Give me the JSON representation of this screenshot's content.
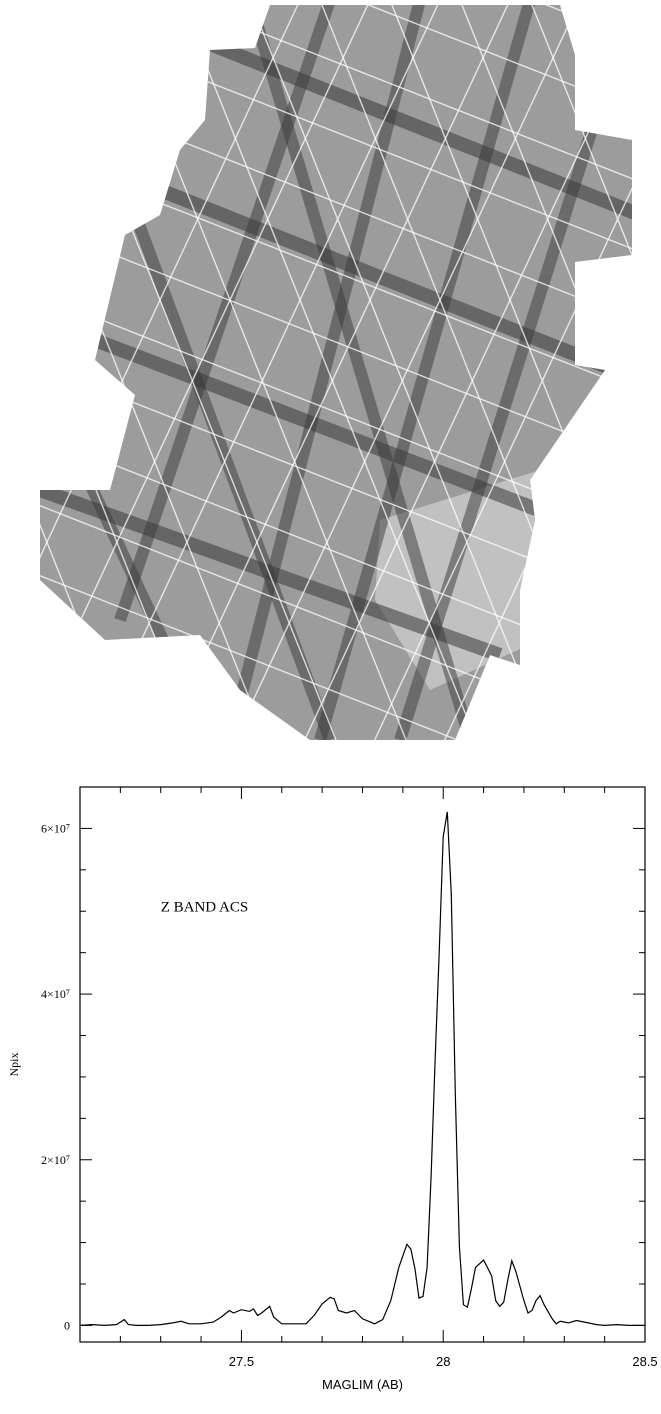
{
  "figure": {
    "top_panel": "ACS z-band mosaic exposure map",
    "colors": {
      "mosaic_fill": "#9c9c9c",
      "mosaic_light": "#b8b8b8",
      "strip_dark": "#3a3a3a",
      "white_lines": "#ffffff",
      "curve": "#000000"
    }
  },
  "chart_data": {
    "type": "line",
    "title": "",
    "annotation": "Z BAND ACS",
    "xlabel": "MAGLIM (AB)",
    "ylabel": "Npix",
    "xlim": [
      27.1,
      28.5
    ],
    "ylim": [
      -2000000,
      65000000
    ],
    "xticks": [
      27.5,
      28,
      28.5
    ],
    "xtick_labels": [
      "27.5",
      "28",
      "28.5"
    ],
    "yticks": [
      0,
      20000000,
      40000000,
      60000000
    ],
    "ytick_labels": [
      "0",
      "2×10⁷",
      "4×10⁷",
      "6×10⁷"
    ],
    "grid": false,
    "series": [
      {
        "x": [
          27.1,
          27.13,
          27.16,
          27.19,
          27.21,
          27.22,
          27.24,
          27.27,
          27.3,
          27.33,
          27.35,
          27.37,
          27.4,
          27.43,
          27.45,
          27.47,
          27.48,
          27.5,
          27.52,
          27.53,
          27.54,
          27.55,
          27.57,
          27.58,
          27.6,
          27.63,
          27.66,
          27.68,
          27.7,
          27.72,
          27.73,
          27.74,
          27.76,
          27.78,
          27.8,
          27.83,
          27.85,
          27.87,
          27.89,
          27.91,
          27.92,
          27.93,
          27.94,
          27.95,
          27.96,
          27.97,
          27.98,
          27.99,
          28.0,
          28.01,
          28.02,
          28.03,
          28.04,
          28.05,
          28.06,
          28.07,
          28.08,
          28.1,
          28.12,
          28.13,
          28.14,
          28.15,
          28.16,
          28.17,
          28.18,
          28.2,
          28.21,
          28.22,
          28.23,
          28.24,
          28.25,
          28.27,
          28.28,
          28.29,
          28.31,
          28.33,
          28.35,
          28.38,
          28.4,
          28.43,
          28.46,
          28.48,
          28.5
        ],
        "values": [
          0,
          100000,
          0,
          100000,
          700000,
          100000,
          0,
          0,
          100000,
          300000,
          500000,
          200000,
          200000,
          400000,
          1000000,
          1800000,
          1500000,
          1900000,
          1700000,
          2000000,
          1200000,
          1500000,
          2300000,
          1000000,
          200000,
          200000,
          200000,
          1200000,
          2600000,
          3400000,
          3200000,
          1800000,
          1500000,
          1800000,
          800000,
          200000,
          700000,
          3000000,
          7000000,
          9800000,
          9200000,
          6800000,
          3300000,
          3500000,
          7000000,
          18000000,
          32000000,
          45000000,
          59000000,
          62000000,
          52000000,
          28000000,
          9500000,
          2500000,
          2200000,
          4500000,
          7000000,
          7900000,
          6000000,
          3000000,
          2300000,
          2800000,
          5500000,
          7800000,
          6500000,
          3000000,
          1500000,
          1800000,
          3000000,
          3600000,
          2500000,
          800000,
          200000,
          500000,
          300000,
          600000,
          400000,
          100000,
          0,
          100000,
          0,
          0,
          0
        ]
      }
    ]
  }
}
